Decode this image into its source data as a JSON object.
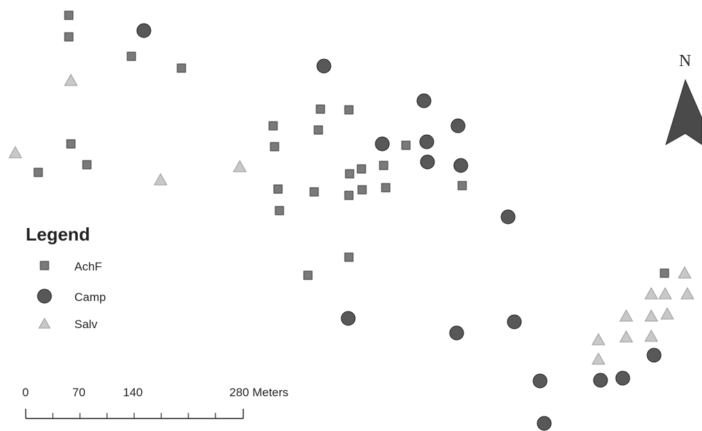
{
  "map": {
    "layers": [
      {
        "name": "AchF",
        "symbol": "square-icon",
        "color": "#7a7a7a",
        "stroke": "#3a3a3a"
      },
      {
        "name": "Camp",
        "symbol": "circle-icon",
        "color": "#585858",
        "stroke": "#1e1e1e"
      },
      {
        "name": "Salv",
        "symbol": "triangle-icon",
        "color": "#c8c8c8",
        "stroke": "#9a9a9a"
      }
    ]
  },
  "legend": {
    "title": "Legend",
    "items": [
      {
        "label": "AchF",
        "symbol": "square-icon"
      },
      {
        "label": "Camp",
        "symbol": "circle-icon"
      },
      {
        "label": "Salv",
        "symbol": "triangle-icon"
      }
    ]
  },
  "scale_bar": {
    "ticks": [
      "0",
      "70",
      "140",
      "280 Meters"
    ]
  },
  "north_arrow": {
    "label": "N"
  }
}
